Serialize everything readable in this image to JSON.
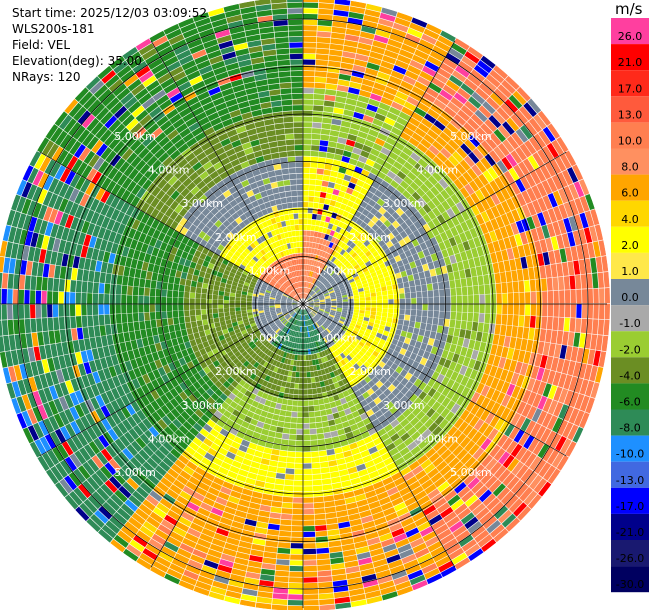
{
  "header": {
    "start_time": "Start time: 2025/12/03 03:09:52",
    "instrument": "WLS200s-181",
    "field": "Field: VEL",
    "elevation": "Elevation(deg): 35.00",
    "nrays": "NRays: 120"
  },
  "colorbar": {
    "unit": "m/s",
    "bins": [
      {
        "label": "26.0",
        "color": "#ff3f9f"
      },
      {
        "label": "21.0",
        "color": "#ff0000"
      },
      {
        "label": "17.0",
        "color": "#ff2a1a"
      },
      {
        "label": "13.0",
        "color": "#ff5a3c"
      },
      {
        "label": "10.0",
        "color": "#ff7f50"
      },
      {
        "label": "8.0",
        "color": "#ff9060"
      },
      {
        "label": "6.0",
        "color": "#ffa500"
      },
      {
        "label": "4.0",
        "color": "#ffd700"
      },
      {
        "label": "2.0",
        "color": "#ffff00"
      },
      {
        "label": "1.0",
        "color": "#ffe84a"
      },
      {
        "label": "0.0",
        "color": "#778899"
      },
      {
        "label": "-1.0",
        "color": "#a9a9a9"
      },
      {
        "label": "-2.0",
        "color": "#9acd32"
      },
      {
        "label": "-4.0",
        "color": "#6b8e23"
      },
      {
        "label": "-6.0",
        "color": "#228b22"
      },
      {
        "label": "-8.0",
        "color": "#2e8b57"
      },
      {
        "label": "-10.0",
        "color": "#1e90ff"
      },
      {
        "label": "-13.0",
        "color": "#4169e1"
      },
      {
        "label": "-17.0",
        "color": "#0000ff"
      },
      {
        "label": "-21.0",
        "color": "#00008b"
      },
      {
        "label": "-26.0",
        "color": "#191970"
      },
      {
        "label": "-30.0",
        "color": "#000060"
      }
    ]
  },
  "chart_data": {
    "type": "ppi",
    "title": "Start time: 2025/12/03 03:09:52",
    "field": "VEL",
    "units": "m/s",
    "elevation_deg": 35.0,
    "n_rays": 120,
    "max_range_km": 6.0,
    "range_ring_labels_km": [
      1.0,
      2.0,
      3.0,
      4.0,
      5.0
    ],
    "range_ring_labels": [
      "1.00km",
      "2.00km",
      "3.00km",
      "4.00km",
      "5.00km"
    ],
    "sector_pattern": [
      {
        "from_az": 0,
        "to_az": 30,
        "by_range_km": [
          [
            1.5,
            "+8"
          ],
          [
            3.0,
            "+2"
          ],
          [
            4.5,
            "-2"
          ],
          [
            6.0,
            "+6"
          ]
        ]
      },
      {
        "from_az": 30,
        "to_az": 150,
        "by_range_km": [
          [
            1.0,
            "0"
          ],
          [
            2.0,
            "+2"
          ],
          [
            3.0,
            "0"
          ],
          [
            4.0,
            "-2"
          ],
          [
            5.0,
            "+6"
          ],
          [
            6.0,
            "+10"
          ]
        ]
      },
      {
        "from_az": 150,
        "to_az": 220,
        "by_range_km": [
          [
            1.0,
            "-8"
          ],
          [
            2.0,
            "-4"
          ],
          [
            3.0,
            "-2"
          ],
          [
            4.0,
            "+2"
          ],
          [
            6.0,
            "+6"
          ]
        ]
      },
      {
        "from_az": 220,
        "to_az": 300,
        "by_range_km": [
          [
            1.0,
            "0"
          ],
          [
            2.5,
            "-4"
          ],
          [
            4.0,
            "-6"
          ],
          [
            6.0,
            "-8"
          ]
        ]
      },
      {
        "from_az": 300,
        "to_az": 360,
        "by_range_km": [
          [
            1.0,
            "+10"
          ],
          [
            2.0,
            "+2"
          ],
          [
            3.0,
            "0"
          ],
          [
            4.0,
            "-4"
          ],
          [
            6.0,
            "-6"
          ]
        ]
      }
    ],
    "colorbar_ticks": [
      "26.0",
      "21.0",
      "17.0",
      "13.0",
      "10.0",
      "8.0",
      "6.0",
      "4.0",
      "2.0",
      "1.0",
      "0.0",
      "-1.0",
      "-2.0",
      "-4.0",
      "-6.0",
      "-8.0",
      "-10.0",
      "-13.0",
      "-17.0",
      "-21.0",
      "-26.0",
      "-30.0"
    ]
  }
}
